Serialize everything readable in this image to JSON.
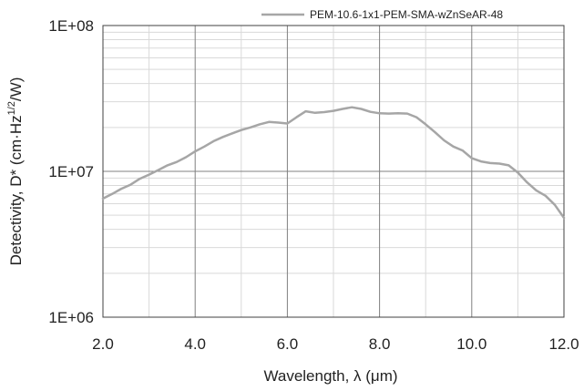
{
  "chart_data": {
    "type": "line",
    "title": "",
    "xlabel": "Wavelength, λ (μm)",
    "ylabel": "Detectivity, D* (cm·Hz",
    "ylabel_superscript": "1/2",
    "ylabel_suffix": "/W)",
    "x_tick_labels": [
      "2.0",
      "4.0",
      "6.0",
      "8.0",
      "10.0",
      "12.0"
    ],
    "y_tick_labels": [
      "1E+06",
      "1E+07",
      "1E+08"
    ],
    "xlim": [
      2.0,
      12.0
    ],
    "ylim": [
      1000000,
      100000000
    ],
    "y_scale": "log",
    "grid": true,
    "legend_position": "top-right",
    "series": [
      {
        "name": "PEM-10.6-1x1-PEM-SMA-wZnSeAR-48",
        "color": "#a6a6a6",
        "x": [
          2.0,
          2.2,
          2.4,
          2.6,
          2.8,
          3.0,
          3.2,
          3.4,
          3.6,
          3.8,
          4.0,
          4.2,
          4.4,
          4.6,
          4.8,
          5.0,
          5.2,
          5.4,
          5.6,
          5.8,
          6.0,
          6.2,
          6.4,
          6.6,
          6.8,
          7.0,
          7.2,
          7.4,
          7.6,
          7.8,
          8.0,
          8.2,
          8.4,
          8.6,
          8.8,
          9.0,
          9.2,
          9.4,
          9.6,
          9.8,
          10.0,
          10.2,
          10.4,
          10.6,
          10.8,
          11.0,
          11.2,
          11.4,
          11.6,
          11.8,
          12.0
        ],
        "y": [
          6500000,
          7000000,
          7600000,
          8100000,
          8900000,
          9500000,
          10200000,
          11000000,
          11600000,
          12500000,
          13700000,
          14800000,
          16100000,
          17200000,
          18200000,
          19200000,
          20000000,
          21000000,
          21800000,
          21600000,
          21300000,
          23500000,
          25800000,
          25200000,
          25500000,
          26000000,
          26800000,
          27500000,
          26800000,
          25600000,
          25000000,
          24900000,
          25000000,
          24900000,
          23500000,
          21000000,
          18600000,
          16300000,
          14800000,
          13900000,
          12300000,
          11700000,
          11400000,
          11300000,
          11000000,
          9800000,
          8400000,
          7400000,
          6800000,
          5900000,
          4800000
        ]
      }
    ]
  }
}
